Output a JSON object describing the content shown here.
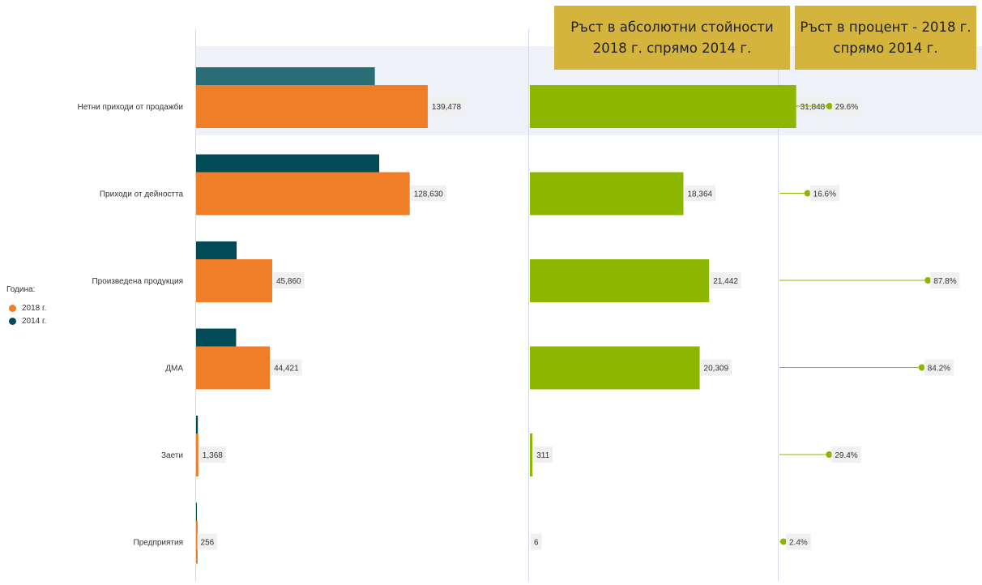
{
  "headers": {
    "absolute_growth": "Ръст в абсолютни стойности 2018 г. спрямо 2014 г.",
    "percent_growth": "Ръст в процент - 2018 г. спрямо 2014 г."
  },
  "legend": {
    "title": "Година:",
    "items": [
      {
        "label": "2018 г.",
        "color": "#f07d28"
      },
      {
        "label": "2014 г.",
        "color": "#004b56"
      }
    ]
  },
  "colors": {
    "bar_2018": "#f07d28",
    "bar_2014": "#004b56",
    "bar_2014_highlight": "#2a6e75",
    "growth_bar": "#8db600",
    "lollipop": "#8db600",
    "highlight_band": "#eef2f8",
    "axis": "#d5d9ea",
    "label_bg": "#f0f0f0"
  },
  "chart_data": [
    {
      "type": "bar",
      "orientation": "horizontal",
      "categories": [
        "Нетни приходи от продажби",
        "Приходи от дейността",
        "Произведена продукция",
        "ДМА",
        "Заети",
        "Предприятия"
      ],
      "series": [
        {
          "name": "2014 г.",
          "values": [
            107630,
            110266,
            24418,
            24112,
            1057,
            250
          ]
        },
        {
          "name": "2018 г.",
          "values": [
            139478,
            128630,
            45860,
            44421,
            1368,
            256
          ]
        }
      ],
      "data_labels": [
        "139,478",
        "128,630",
        "45,860",
        "44,421",
        "1,368",
        "256"
      ],
      "xlim": [
        0,
        200000
      ],
      "highlighted_category": "Нетни приходи от продажби",
      "legend_position": "left"
    },
    {
      "type": "bar",
      "orientation": "horizontal",
      "title": "Ръст в абсолютни стойности 2018 г. спрямо 2014 г.",
      "categories": [
        "Нетни приходи от продажби",
        "Приходи от дейността",
        "Произведена продукция",
        "ДМА",
        "Заети",
        "Предприятия"
      ],
      "values": [
        31848,
        18364,
        21442,
        20309,
        311,
        6
      ],
      "data_labels": [
        "31,848",
        "18,364",
        "21,442",
        "20,309",
        "311",
        "6"
      ],
      "xlim": [
        0,
        86000
      ]
    },
    {
      "type": "lollipop",
      "orientation": "horizontal",
      "title": "Ръст в процент - 2018 г. спрямо 2014 г.",
      "categories": [
        "Нетни приходи от продажби",
        "Приходи от дейността",
        "Произведена продукция",
        "ДМА",
        "Заети",
        "Предприятия"
      ],
      "values": [
        29.6,
        16.6,
        87.8,
        84.2,
        29.4,
        2.4
      ],
      "data_labels": [
        "29.6%",
        "16.6%",
        "87.8%",
        "84.2%",
        "29.4%",
        "2.4%"
      ],
      "xlim": [
        0,
        115
      ]
    }
  ]
}
